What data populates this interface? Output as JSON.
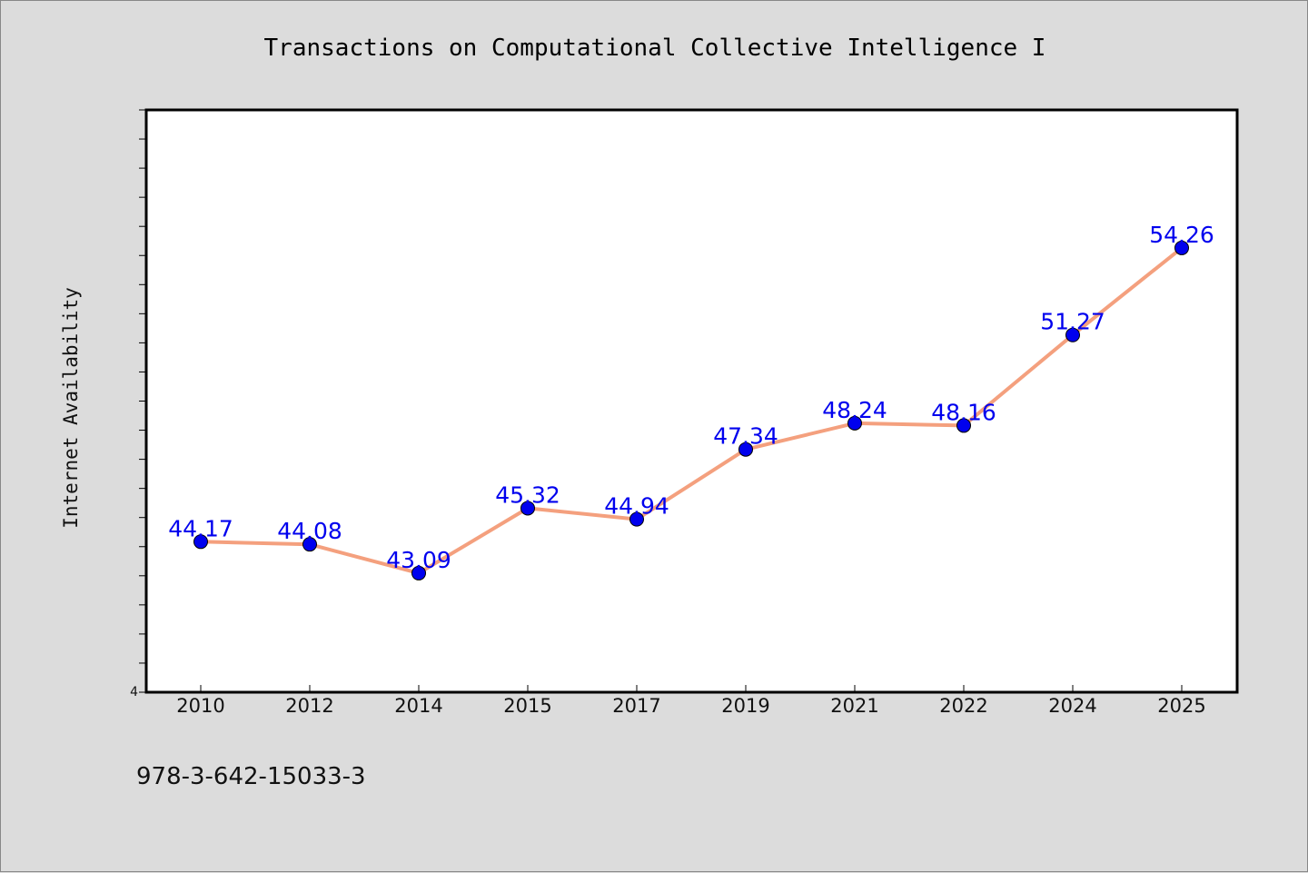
{
  "chart_data": {
    "type": "line",
    "title": "Transactions on Computational Collective Intelligence I",
    "xlabel": "",
    "ylabel": "Internet Availability",
    "categories": [
      "2010",
      "2012",
      "2014",
      "2015",
      "2017",
      "2019",
      "2021",
      "2022",
      "2024",
      "2025"
    ],
    "series": [
      {
        "values": [
          44.17,
          44.08,
          43.09,
          45.32,
          44.94,
          47.34,
          48.24,
          48.16,
          51.27,
          54.26
        ],
        "value_labels": [
          "44.17",
          "44.08",
          "43.09",
          "45.32",
          "44.94",
          "47.34",
          "48.24",
          "48.16",
          "51.27",
          "54.26"
        ]
      }
    ],
    "ylim": [
      39,
      59
    ],
    "y_tick_labels": [
      "4"
    ],
    "grid": false,
    "colors": {
      "line": "#f4a07e",
      "marker": "#0000ee",
      "label": "#0000ee"
    }
  },
  "footer": {
    "text": "978-3-642-15033-3"
  }
}
